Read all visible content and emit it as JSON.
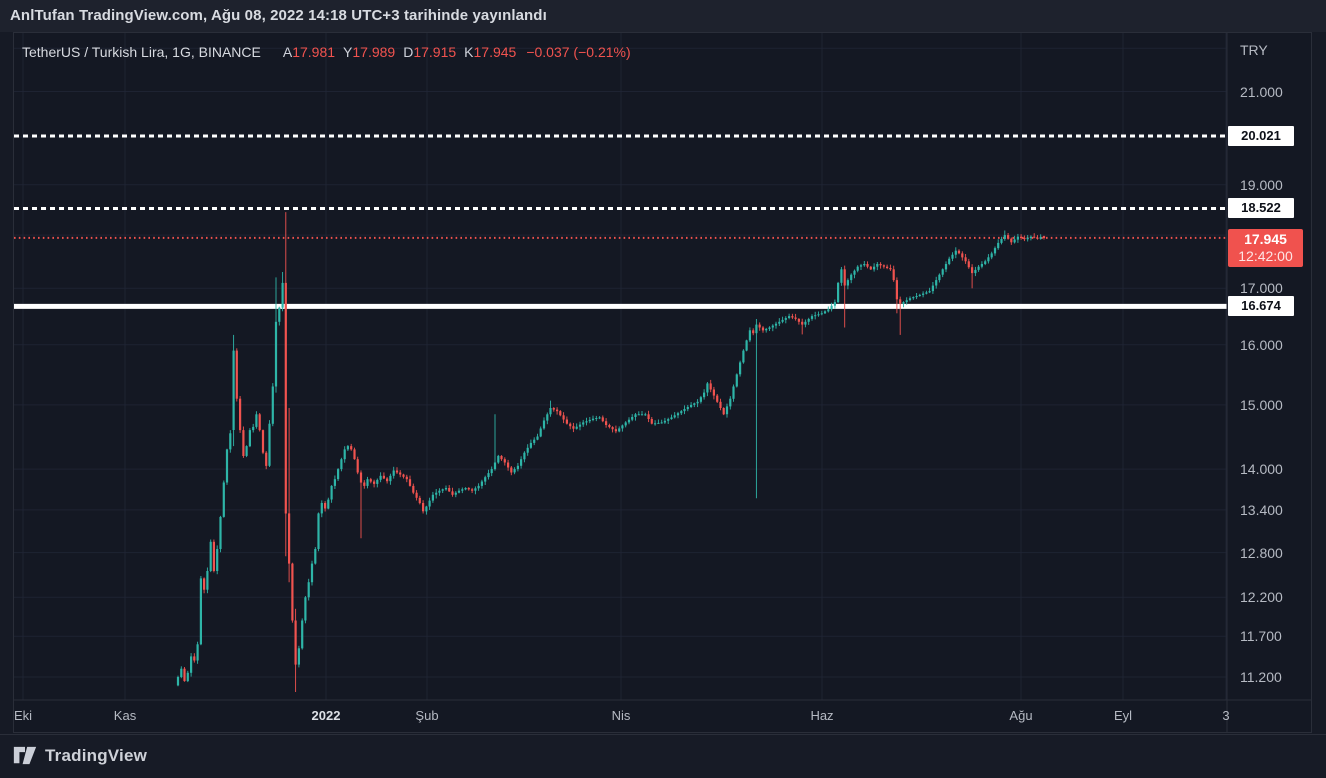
{
  "published_bar": {
    "text": "AnlTufan TradingView.com, Ağu 08, 2022 14:18 UTC+3 tarihinde yayınlandı"
  },
  "legend": {
    "symbol": "TetherUS / Turkish Lira, 1G, BINANCE",
    "ohlc": [
      {
        "label": "A",
        "value": "17.981"
      },
      {
        "label": "Y",
        "value": "17.989"
      },
      {
        "label": "D",
        "value": "17.915"
      },
      {
        "label": "K",
        "value": "17.945"
      }
    ],
    "change": "−0.037 (−0.21%)"
  },
  "footer": {
    "brand": "TradingView"
  },
  "colors": {
    "up": "#2eb5a8",
    "down": "#f1534f",
    "grid": "#212636",
    "level_white": "#ffffff",
    "last_price": "#f0524e",
    "axis_text": "#b6bac3",
    "pane_bg": "#141823",
    "topbar_bg": "#1e222d"
  },
  "chart_data": {
    "type": "candlestick",
    "title": "TetherUS / Turkish Lira, 1G, BINANCE",
    "symbol": "TetherUS / Turkish Lira",
    "interval": "1G",
    "exchange": "BINANCE",
    "last_ohlc": {
      "open": 17.981,
      "high": 17.989,
      "low": 17.915,
      "close": 17.945,
      "change": -0.037,
      "change_pct": -0.21
    },
    "countdown": "12:42:00",
    "y_axis": {
      "scale": "log",
      "currency_label": "TRY",
      "calib": {
        "a": 2926.9,
        "b": 931.3
      },
      "ticks": [
        {
          "label": "21.000",
          "price": 21.0
        },
        {
          "label": "19.000",
          "price": 19.0
        },
        {
          "label": "17.000",
          "price": 17.0
        },
        {
          "label": "16.000",
          "price": 16.0
        },
        {
          "label": "15.000",
          "price": 15.0
        },
        {
          "label": "14.000",
          "price": 14.0
        },
        {
          "label": "13.400",
          "price": 13.4
        },
        {
          "label": "12.800",
          "price": 12.8
        },
        {
          "label": "12.200",
          "price": 12.2
        },
        {
          "label": "11.700",
          "price": 11.7
        },
        {
          "label": "11.200",
          "price": 11.2
        }
      ],
      "grid_prices": [
        22.0,
        21.0,
        20.0,
        19.0,
        18.0,
        17.0,
        16.0,
        15.0,
        14.0,
        13.4,
        12.8,
        12.2,
        11.7,
        11.2
      ]
    },
    "x_axis": {
      "ticks": [
        {
          "label": "Eki",
          "x": 23,
          "major": false
        },
        {
          "label": "Kas",
          "x": 125,
          "major": false
        },
        {
          "label": "2022",
          "x": 326,
          "major": true
        },
        {
          "label": "Şub",
          "x": 427,
          "major": false
        },
        {
          "label": "Nis",
          "x": 621,
          "major": false
        },
        {
          "label": "Haz",
          "x": 822,
          "major": false
        },
        {
          "label": "Ağu",
          "x": 1021,
          "major": false
        },
        {
          "label": "Eyl",
          "x": 1123,
          "major": false
        },
        {
          "label": "3",
          "x": 1226,
          "major": false
        }
      ]
    },
    "levels": [
      {
        "price": 20.021,
        "label": "20.021",
        "style": "dashed",
        "color": "#ffffff",
        "width": 3,
        "badge": "white"
      },
      {
        "price": 18.522,
        "label": "18.522",
        "style": "dashed",
        "color": "#ffffff",
        "width": 3,
        "badge": "white"
      },
      {
        "price": 17.945,
        "label": "17.945",
        "style": "dotted",
        "color": "#f0524e",
        "width": 2,
        "badge": "last"
      },
      {
        "price": 16.674,
        "label": "16.674",
        "style": "solid",
        "color": "#ffffff",
        "width": 5,
        "badge": "white"
      }
    ],
    "series": {
      "x_start": 178,
      "x_end": 1044,
      "count": 266,
      "first_open": 11.1,
      "seed": 42,
      "keyframes": [
        [
          0,
          11.2
        ],
        [
          1,
          11.3
        ],
        [
          2,
          11.15
        ],
        [
          3,
          11.25
        ],
        [
          4,
          11.45
        ],
        [
          5,
          11.4
        ],
        [
          6,
          11.6
        ],
        [
          7,
          12.45
        ],
        [
          8,
          12.3
        ],
        [
          9,
          12.55
        ],
        [
          10,
          12.95
        ],
        [
          11,
          12.55
        ],
        [
          12,
          12.85
        ],
        [
          13,
          13.3
        ],
        [
          14,
          13.8
        ],
        [
          15,
          14.3
        ],
        [
          16,
          14.55
        ],
        [
          17,
          15.9
        ],
        [
          18,
          15.1
        ],
        [
          19,
          14.6
        ],
        [
          20,
          14.2
        ],
        [
          21,
          14.35
        ],
        [
          22,
          14.6
        ],
        [
          23,
          14.65
        ],
        [
          24,
          14.85
        ],
        [
          25,
          14.6
        ],
        [
          26,
          14.25
        ],
        [
          27,
          14.05
        ],
        [
          28,
          14.7
        ],
        [
          29,
          15.3
        ],
        [
          30,
          16.4
        ],
        [
          31,
          16.65
        ],
        [
          32,
          17.1
        ],
        [
          33,
          13.35
        ],
        [
          34,
          12.65
        ],
        [
          35,
          11.9
        ],
        [
          36,
          11.35
        ],
        [
          37,
          11.55
        ],
        [
          38,
          11.9
        ],
        [
          39,
          12.2
        ],
        [
          40,
          12.4
        ],
        [
          41,
          12.65
        ],
        [
          42,
          12.85
        ],
        [
          43,
          13.35
        ],
        [
          44,
          13.5
        ],
        [
          45,
          13.42
        ],
        [
          46,
          13.55
        ],
        [
          47,
          13.75
        ],
        [
          48,
          13.85
        ],
        [
          49,
          14.0
        ],
        [
          50,
          14.15
        ],
        [
          51,
          14.3
        ],
        [
          52,
          14.35
        ],
        [
          53,
          14.3
        ],
        [
          54,
          14.15
        ],
        [
          55,
          13.95
        ],
        [
          56,
          13.8
        ],
        [
          57,
          13.75
        ],
        [
          58,
          13.85
        ],
        [
          60,
          13.78
        ],
        [
          62,
          13.9
        ],
        [
          64,
          13.82
        ],
        [
          66,
          13.98
        ],
        [
          68,
          13.92
        ],
        [
          70,
          13.85
        ],
        [
          72,
          13.65
        ],
        [
          74,
          13.5
        ],
        [
          75,
          13.38
        ],
        [
          76,
          13.45
        ],
        [
          78,
          13.62
        ],
        [
          80,
          13.68
        ],
        [
          82,
          13.72
        ],
        [
          84,
          13.62
        ],
        [
          86,
          13.68
        ],
        [
          88,
          13.72
        ],
        [
          90,
          13.68
        ],
        [
          92,
          13.75
        ],
        [
          94,
          13.88
        ],
        [
          96,
          14.0
        ],
        [
          97,
          14.1
        ],
        [
          98,
          14.2
        ],
        [
          100,
          14.1
        ],
        [
          102,
          13.95
        ],
        [
          104,
          14.05
        ],
        [
          106,
          14.25
        ],
        [
          108,
          14.4
        ],
        [
          110,
          14.5
        ],
        [
          112,
          14.75
        ],
        [
          114,
          14.95
        ],
        [
          116,
          14.9
        ],
        [
          119,
          14.7
        ],
        [
          121,
          14.62
        ],
        [
          124,
          14.72
        ],
        [
          127,
          14.78
        ],
        [
          129,
          14.8
        ],
        [
          131,
          14.68
        ],
        [
          134,
          14.58
        ],
        [
          137,
          14.72
        ],
        [
          140,
          14.85
        ],
        [
          143,
          14.85
        ],
        [
          145,
          14.7
        ],
        [
          148,
          14.72
        ],
        [
          151,
          14.8
        ],
        [
          154,
          14.9
        ],
        [
          157,
          15.0
        ],
        [
          159,
          15.05
        ],
        [
          161,
          15.2
        ],
        [
          162,
          15.35
        ],
        [
          164,
          15.15
        ],
        [
          166,
          14.95
        ],
        [
          167,
          14.85
        ],
        [
          169,
          15.1
        ],
        [
          171,
          15.5
        ],
        [
          173,
          15.9
        ],
        [
          175,
          16.25
        ],
        [
          176,
          16.2
        ],
        [
          177,
          16.35
        ],
        [
          179,
          16.25
        ],
        [
          181,
          16.3
        ],
        [
          184,
          16.4
        ],
        [
          187,
          16.5
        ],
        [
          189,
          16.45
        ],
        [
          191,
          16.35
        ],
        [
          194,
          16.5
        ],
        [
          197,
          16.55
        ],
        [
          199,
          16.62
        ],
        [
          201,
          16.75
        ],
        [
          202,
          17.1
        ],
        [
          203,
          17.35
        ],
        [
          204,
          17.05
        ],
        [
          206,
          17.25
        ],
        [
          208,
          17.4
        ],
        [
          210,
          17.45
        ],
        [
          212,
          17.35
        ],
        [
          214,
          17.45
        ],
        [
          216,
          17.4
        ],
        [
          218,
          17.35
        ],
        [
          219,
          17.15
        ],
        [
          220,
          16.8
        ],
        [
          221,
          16.72
        ],
        [
          222,
          16.75
        ],
        [
          224,
          16.82
        ],
        [
          227,
          16.88
        ],
        [
          230,
          16.95
        ],
        [
          232,
          17.15
        ],
        [
          234,
          17.35
        ],
        [
          236,
          17.55
        ],
        [
          238,
          17.7
        ],
        [
          239,
          17.65
        ],
        [
          241,
          17.5
        ],
        [
          243,
          17.28
        ],
        [
          245,
          17.4
        ],
        [
          247,
          17.5
        ],
        [
          249,
          17.65
        ],
        [
          251,
          17.85
        ],
        [
          253,
          18.0
        ],
        [
          255,
          17.86
        ],
        [
          257,
          17.97
        ],
        [
          259,
          17.92
        ],
        [
          261,
          17.97
        ],
        [
          263,
          17.93
        ],
        [
          264,
          17.96
        ],
        [
          265,
          17.945
        ]
      ],
      "specials": {
        "17": {
          "o": 14.6,
          "h": 16.17,
          "l": 14.35,
          "c": 15.9
        },
        "30": {
          "o": 15.3,
          "h": 17.2,
          "l": 15.2,
          "c": 16.4
        },
        "32": {
          "h": 17.3
        },
        "33": {
          "o": 17.1,
          "h": 18.45,
          "l": 12.75,
          "c": 13.35
        },
        "34": {
          "o": 13.35,
          "h": 14.95,
          "l": 12.4,
          "c": 12.65
        },
        "36": {
          "o": 11.9,
          "h": 12.05,
          "l": 11.02,
          "c": 11.35
        },
        "56": {
          "l": 13.0
        },
        "97": {
          "h": 14.85
        },
        "114": {
          "h": 15.07
        },
        "177": {
          "o": 16.2,
          "h": 16.45,
          "l": 13.57,
          "c": 16.35
        },
        "191": {
          "l": 16.18
        },
        "204": {
          "o": 17.35,
          "h": 17.42,
          "l": 16.3,
          "c": 17.05
        },
        "220": {
          "o": 17.15,
          "h": 17.2,
          "l": 16.55,
          "c": 16.8
        },
        "221": {
          "o": 16.8,
          "h": 16.85,
          "l": 16.17,
          "c": 16.72
        },
        "243": {
          "l": 17.0
        },
        "253": {
          "h": 18.09
        },
        "265": {
          "o": 17.981,
          "h": 17.989,
          "l": 17.915,
          "c": 17.945
        }
      }
    }
  }
}
